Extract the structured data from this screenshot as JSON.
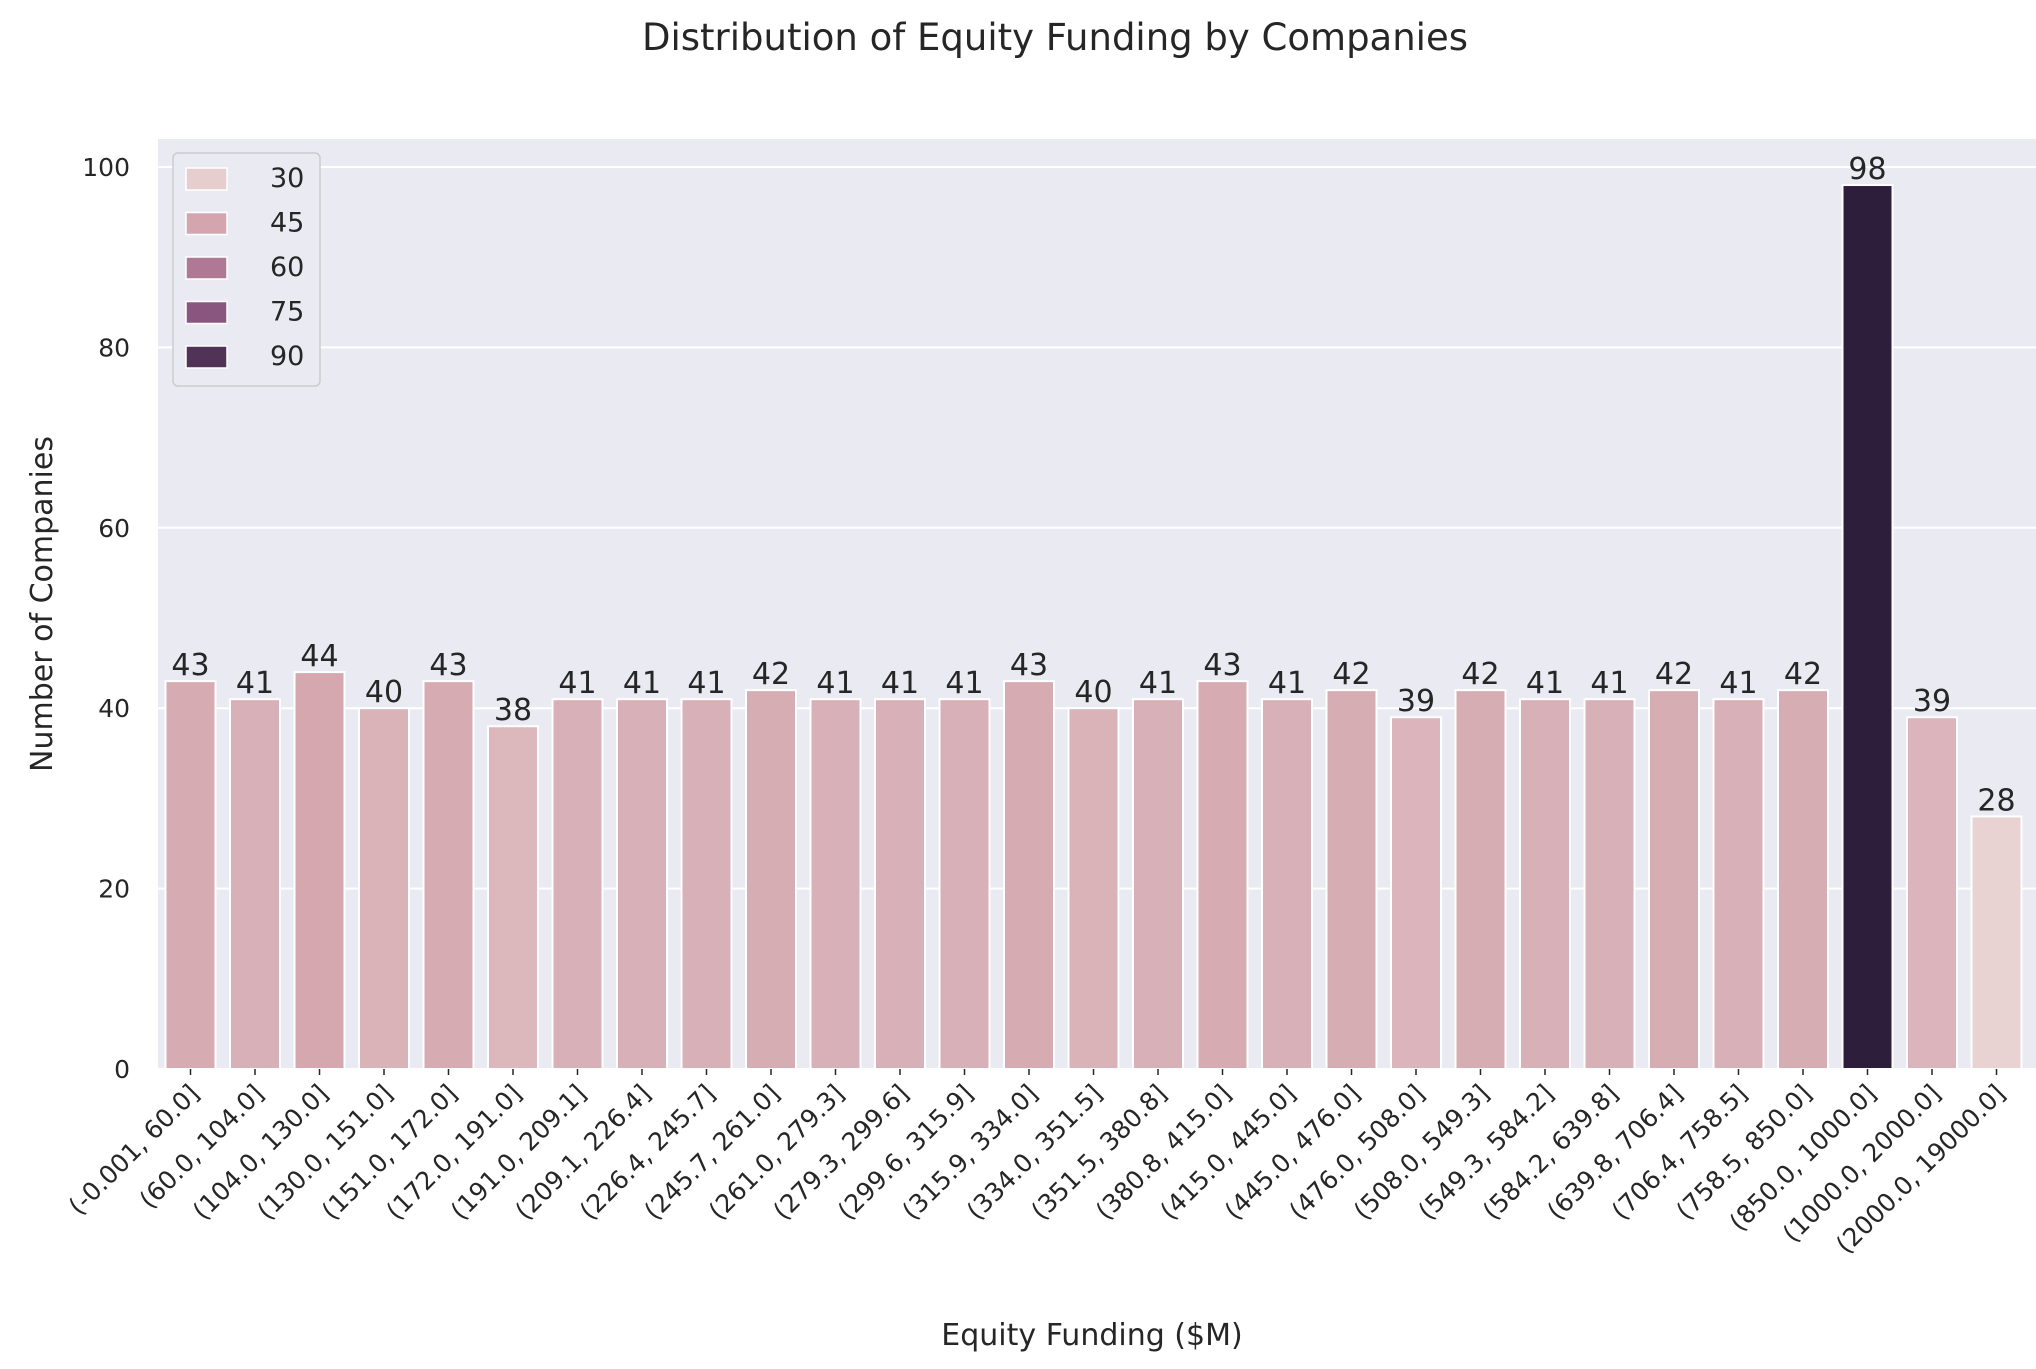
{
  "chart_data": {
    "type": "bar",
    "title": "Distribution of Equity Funding by Companies",
    "xlabel": "Equity Funding ($M)",
    "ylabel": "Number of Companies",
    "ylim": [
      0,
      103
    ],
    "yticks": [
      0,
      20,
      40,
      60,
      80,
      100
    ],
    "grid": true,
    "legend_placement": "top-left",
    "hue_range": [
      28,
      98
    ],
    "legend": [
      "30",
      "45",
      "60",
      "75",
      "90"
    ],
    "categories": [
      "(-0.001, 60.0]",
      "(60.0, 104.0]",
      "(104.0, 130.0]",
      "(130.0, 151.0]",
      "(151.0, 172.0]",
      "(172.0, 191.0]",
      "(191.0, 209.1]",
      "(209.1, 226.4]",
      "(226.4, 245.7]",
      "(245.7, 261.0]",
      "(261.0, 279.3]",
      "(279.3, 299.6]",
      "(299.6, 315.9]",
      "(315.9, 334.0]",
      "(334.0, 351.5]",
      "(351.5, 380.8]",
      "(380.8, 415.0]",
      "(415.0, 445.0]",
      "(445.0, 476.0]",
      "(476.0, 508.0]",
      "(508.0, 549.3]",
      "(549.3, 584.2]",
      "(584.2, 639.8]",
      "(639.8, 706.4]",
      "(706.4, 758.5]",
      "(758.5, 850.0]",
      "(850.0, 1000.0]",
      "(1000.0, 2000.0]",
      "(2000.0, 19000.0]"
    ],
    "values": [
      43,
      41,
      44,
      40,
      43,
      38,
      41,
      41,
      41,
      42,
      41,
      41,
      41,
      43,
      40,
      41,
      43,
      41,
      42,
      39,
      42,
      41,
      41,
      42,
      41,
      42,
      98,
      39,
      28
    ]
  },
  "colors": {
    "plot_background": "#eaeaf2",
    "grid": "#ffffff",
    "palette_light": "#e8d3d2",
    "palette_dark": "#2d1e3c"
  }
}
